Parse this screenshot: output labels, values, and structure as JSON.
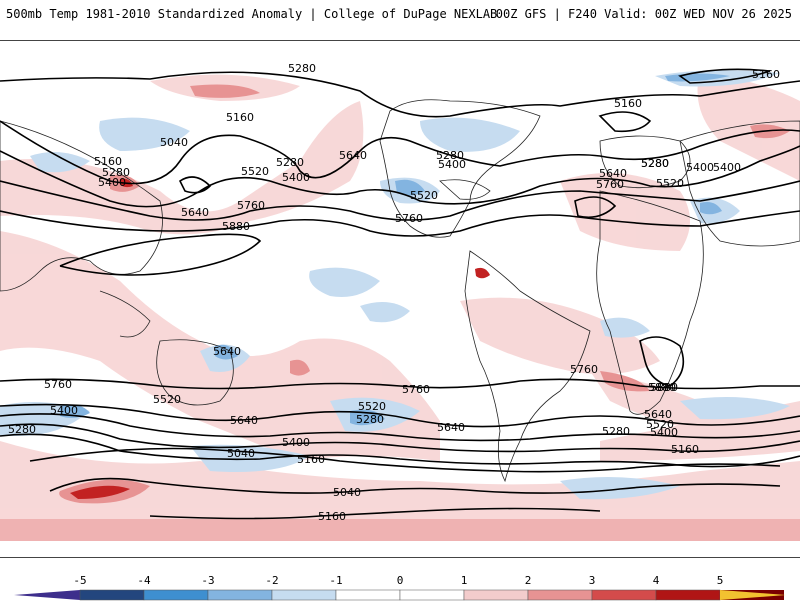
{
  "header": {
    "title": "500mb Temp 1981-2010 Standardized Anomaly | College of DuPage NEXLAB",
    "run_info": "00Z GFS | F240 Valid: 00Z WED NOV 26 2025"
  },
  "map": {
    "contour_labels": [
      "5280",
      "5160",
      "5160",
      "5040",
      "5160",
      "5280",
      "5400",
      "5520",
      "5280",
      "5400",
      "5640",
      "5760",
      "5640",
      "5880",
      "5280",
      "5400",
      "5520",
      "5760",
      "5160",
      "5280",
      "5400",
      "5640",
      "5280",
      "5520",
      "5760",
      "5400",
      "5640",
      "5760",
      "5880",
      "5760",
      "5400",
      "5280",
      "5520",
      "5640",
      "5400",
      "5040",
      "5160",
      "5040",
      "5160",
      "5520",
      "5280",
      "5640",
      "5280",
      "5400",
      "5520",
      "5640",
      "5880",
      "5760",
      "5160"
    ],
    "colors": {
      "ocean": "#ffffff",
      "coastline": "#222222",
      "contour": "#000000"
    }
  },
  "colorbar": {
    "ticks": [
      "-5",
      "-4",
      "-3",
      "-2",
      "-1",
      "0",
      "1",
      "2",
      "3",
      "4",
      "5"
    ],
    "colors": [
      "#3d2e8c",
      "#23467e",
      "#3e8fd0",
      "#83b4e0",
      "#c6dcf0",
      "#ffffff",
      "#ffffff",
      "#f3cccc",
      "#e79393",
      "#d44b4b",
      "#b01515",
      "#7a0000",
      "#f2c230"
    ]
  }
}
